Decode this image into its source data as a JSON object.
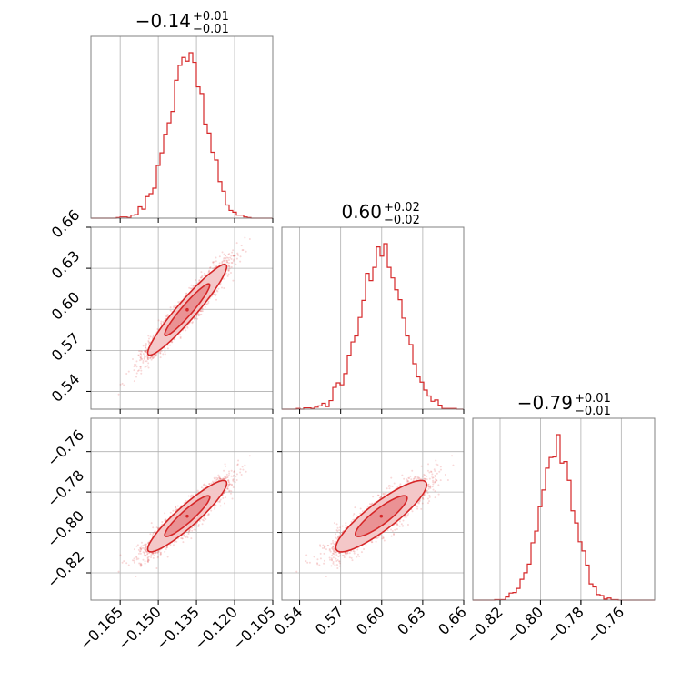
{
  "colors": {
    "accent": "#d62728",
    "fill_light": "#f4c7c8",
    "fill_mid": "#ea9294",
    "grid": "#b0b0b0",
    "frame": "#808080"
  },
  "chart_data": {
    "type": "corner",
    "params": [
      {
        "median": "−0.14",
        "plus": "+0.01",
        "minus": "−0.01",
        "mean": -0.1385,
        "sigma": 0.0075,
        "range": [
          -0.1765,
          -0.105
        ],
        "ticks": [
          -0.165,
          -0.15,
          -0.135,
          -0.12,
          -0.105
        ],
        "tick_labels": [
          "−0.165",
          "−0.150",
          "−0.135",
          "−0.120",
          "−0.105"
        ]
      },
      {
        "median": "0.60",
        "plus": "+0.02",
        "minus": "−0.02",
        "mean": 0.6,
        "sigma": 0.016,
        "range": [
          0.527,
          0.66
        ],
        "ticks": [
          0.54,
          0.57,
          0.6,
          0.63,
          0.66
        ],
        "tick_labels": [
          "0.54",
          "0.57",
          "0.60",
          "0.63",
          "0.66"
        ]
      },
      {
        "median": "−0.79",
        "plus": "+0.01",
        "minus": "−0.01",
        "mean": -0.7918,
        "sigma": 0.0085,
        "range": [
          -0.8335,
          -0.7435
        ],
        "ticks": [
          -0.82,
          -0.8,
          -0.78,
          -0.76
        ],
        "tick_labels": [
          "−0.82",
          "−0.80",
          "−0.78",
          "−0.76"
        ]
      }
    ],
    "grid": true,
    "legend": "none"
  }
}
